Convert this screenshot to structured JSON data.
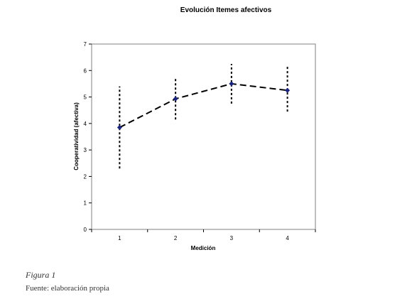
{
  "chart_data": {
    "type": "line",
    "title": "Evolución Itemes afectivos",
    "xlabel": "Medición",
    "ylabel": "Cooperatividad (afectiva)",
    "categories": [
      "1",
      "2",
      "3",
      "4"
    ],
    "ylim": [
      0,
      7
    ],
    "yticks": [
      "0",
      "1",
      "2",
      "3",
      "4",
      "5",
      "6",
      "7"
    ],
    "grid": false,
    "legend": "none",
    "series": [
      {
        "values": [
          3.85,
          4.93,
          5.5,
          5.25
        ]
      }
    ],
    "error_ranges": [
      {
        "low": 2.3,
        "high": 5.4
      },
      {
        "low": 4.15,
        "high": 5.75
      },
      {
        "low": 4.75,
        "high": 6.25
      },
      {
        "low": 4.45,
        "high": 6.2
      }
    ],
    "colors": {
      "marker": "#1a237e",
      "line": "#000000",
      "plot_border": "#808080"
    }
  },
  "caption": {
    "figure": "Figura 1",
    "source": "Fuente: elaboración propia"
  }
}
